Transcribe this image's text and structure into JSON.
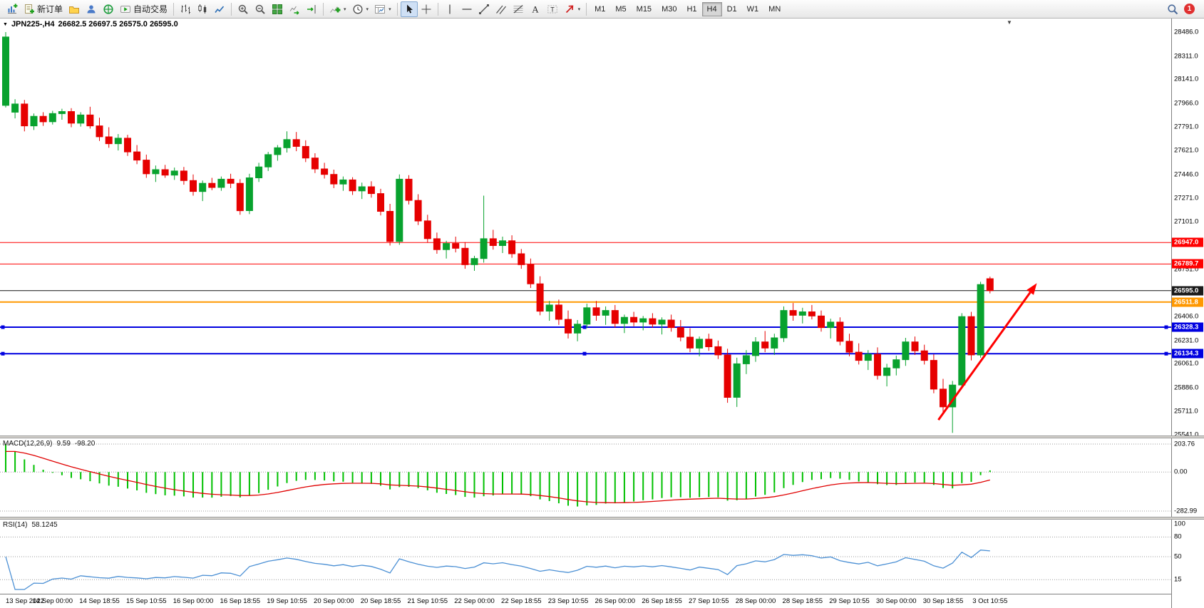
{
  "toolbar": {
    "new_order_label": "新订单",
    "auto_trading_label": "自动交易",
    "timeframes": [
      "M1",
      "M5",
      "M15",
      "M30",
      "H1",
      "H4",
      "D1",
      "W1",
      "MN"
    ],
    "active_timeframe": "H4",
    "notification_count": "1"
  },
  "chart": {
    "title_symbol": "JPN225-,H4",
    "title_ohlc": "26682.5 26697.5 26575.0 26595.0"
  },
  "macd_panel": {
    "label": "MACD(12,26,9)",
    "value_main": "9.59",
    "value_signal": "-98.20",
    "scale": [
      "203.76",
      "0.00",
      "-282.99"
    ],
    "histogram_color": "#00c000",
    "signal_color": "#e00000"
  },
  "rsi_panel": {
    "label": "RSI(14)",
    "value": "58.1245",
    "scale": [
      "100",
      "80",
      "50",
      "15"
    ],
    "levels": [
      80,
      50,
      15
    ],
    "line_color": "#4a8fd4"
  },
  "price_scale": {
    "ticks": [
      "28486.0",
      "28311.0",
      "28141.0",
      "27966.0",
      "27791.0",
      "27621.0",
      "27446.0",
      "27271.0",
      "27101.0",
      "26926.0",
      "26751.0",
      "26406.0",
      "26231.0",
      "26061.0",
      "25886.0",
      "25711.0",
      "25541.0"
    ]
  },
  "hlines": [
    {
      "price": 26947.0,
      "label": "26947.0",
      "color": "#ff0000",
      "width": 1,
      "badge": "#ff0000",
      "handles": false
    },
    {
      "price": 26789.7,
      "label": "26789.7",
      "color": "#ff0000",
      "width": 1,
      "badge": "#ff0000",
      "handles": false
    },
    {
      "price": 26595.0,
      "label": "26595.0",
      "color": "#151515",
      "width": 1,
      "badge": "#1a1a1a",
      "handles": false
    },
    {
      "price": 26511.8,
      "label": "26511.8",
      "color": "#ff9800",
      "width": 2,
      "badge": "#ff9800",
      "handles": false
    },
    {
      "price": 26328.3,
      "label": "26328.3",
      "color": "#0000e0",
      "width": 2,
      "badge": "#0000e0",
      "handles": true
    },
    {
      "price": 26134.3,
      "label": "26134.3",
      "color": "#0000e0",
      "width": 2,
      "badge": "#0000e0",
      "handles": true
    }
  ],
  "trend_arrow": {
    "from_index": 99.5,
    "from_price": 25650,
    "to_index": 110,
    "to_price": 26650,
    "color": "#ff0000"
  },
  "chart_data": {
    "type": "candlestick",
    "symbol": "JPN225-",
    "timeframe": "H4",
    "grid": false,
    "price_min": 25541.0,
    "price_max": 28486.0,
    "current_bar": {
      "open": 26682.5,
      "high": 26697.5,
      "low": 26575.0,
      "close": 26595.0
    },
    "colors": {
      "bull": "#08a22e",
      "bear": "#e60000"
    },
    "label_every_n_candles": 5,
    "time_labels": [
      "13 Sep 2022",
      "14 Sep 00:00",
      "14 Sep 18:55",
      "15 Sep 10:55",
      "16 Sep 00:00",
      "16 Sep 18:55",
      "19 Sep 10:55",
      "20 Sep 00:00",
      "20 Sep 18:55",
      "21 Sep 10:55",
      "22 Sep 00:00",
      "22 Sep 18:55",
      "23 Sep 10:55",
      "26 Sep 00:00",
      "26 Sep 18:55",
      "27 Sep 10:55",
      "28 Sep 00:00",
      "28 Sep 18:55",
      "29 Sep 10:55",
      "30 Sep 00:00",
      "30 Sep 18:55",
      "3 Oct 10:55"
    ],
    "indicators": [
      {
        "type": "MACD",
        "params": [
          12,
          26,
          9
        ]
      },
      {
        "type": "RSI",
        "params": [
          14
        ]
      }
    ],
    "candles": [
      [
        27950,
        28486,
        27935,
        28450
      ],
      [
        27900,
        27995,
        27855,
        27960
      ],
      [
        27960,
        27990,
        27760,
        27800
      ],
      [
        27800,
        27890,
        27770,
        27870
      ],
      [
        27870,
        27900,
        27800,
        27830
      ],
      [
        27830,
        27910,
        27810,
        27890
      ],
      [
        27890,
        27925,
        27845,
        27905
      ],
      [
        27905,
        27930,
        27790,
        27820
      ],
      [
        27820,
        27900,
        27795,
        27880
      ],
      [
        27880,
        27940,
        27780,
        27800
      ],
      [
        27800,
        27860,
        27690,
        27720
      ],
      [
        27720,
        27790,
        27640,
        27670
      ],
      [
        27670,
        27740,
        27620,
        27710
      ],
      [
        27710,
        27735,
        27580,
        27610
      ],
      [
        27610,
        27660,
        27520,
        27550
      ],
      [
        27550,
        27590,
        27420,
        27450
      ],
      [
        27450,
        27510,
        27390,
        27480
      ],
      [
        27480,
        27515,
        27420,
        27440
      ],
      [
        27440,
        27495,
        27405,
        27470
      ],
      [
        27470,
        27500,
        27370,
        27400
      ],
      [
        27400,
        27445,
        27290,
        27320
      ],
      [
        27320,
        27400,
        27250,
        27380
      ],
      [
        27380,
        27420,
        27330,
        27350
      ],
      [
        27350,
        27430,
        27325,
        27410
      ],
      [
        27410,
        27450,
        27345,
        27380
      ],
      [
        27380,
        27410,
        27150,
        27180
      ],
      [
        27180,
        27450,
        27155,
        27420
      ],
      [
        27420,
        27530,
        27390,
        27500
      ],
      [
        27500,
        27610,
        27470,
        27590
      ],
      [
        27590,
        27660,
        27545,
        27640
      ],
      [
        27640,
        27760,
        27605,
        27700
      ],
      [
        27700,
        27755,
        27615,
        27650
      ],
      [
        27650,
        27695,
        27535,
        27565
      ],
      [
        27565,
        27600,
        27455,
        27485
      ],
      [
        27485,
        27530,
        27415,
        27445
      ],
      [
        27445,
        27480,
        27345,
        27375
      ],
      [
        27375,
        27430,
        27325,
        27405
      ],
      [
        27405,
        27425,
        27295,
        27325
      ],
      [
        27325,
        27385,
        27265,
        27355
      ],
      [
        27355,
        27395,
        27275,
        27305
      ],
      [
        27305,
        27340,
        27145,
        27175
      ],
      [
        27175,
        27230,
        26925,
        26955
      ],
      [
        26955,
        27445,
        26930,
        27410
      ],
      [
        27410,
        27440,
        27225,
        27255
      ],
      [
        27255,
        27300,
        27075,
        27105
      ],
      [
        27105,
        27150,
        26945,
        26975
      ],
      [
        26975,
        27020,
        26865,
        26895
      ],
      [
        26895,
        26960,
        26830,
        26940
      ],
      [
        26940,
        26990,
        26875,
        26905
      ],
      [
        26905,
        26950,
        26755,
        26785
      ],
      [
        26785,
        26850,
        26740,
        26830
      ],
      [
        26830,
        27290,
        26800,
        26975
      ],
      [
        26975,
        27040,
        26895,
        26925
      ],
      [
        26925,
        26990,
        26870,
        26960
      ],
      [
        26960,
        27000,
        26835,
        26865
      ],
      [
        26865,
        26900,
        26755,
        26785
      ],
      [
        26785,
        26830,
        26615,
        26645
      ],
      [
        26645,
        26700,
        26415,
        26445
      ],
      [
        26445,
        26520,
        26375,
        26490
      ],
      [
        26490,
        26530,
        26345,
        26385
      ],
      [
        26385,
        26450,
        26245,
        26285
      ],
      [
        26285,
        26380,
        26225,
        26350
      ],
      [
        26350,
        26500,
        26320,
        26470
      ],
      [
        26470,
        26520,
        26375,
        26415
      ],
      [
        26415,
        26480,
        26345,
        26450
      ],
      [
        26450,
        26490,
        26325,
        26355
      ],
      [
        26355,
        26420,
        26285,
        26400
      ],
      [
        26400,
        26440,
        26335,
        26365
      ],
      [
        26365,
        26410,
        26305,
        26390
      ],
      [
        26390,
        26430,
        26325,
        26350
      ],
      [
        26350,
        26400,
        26275,
        26380
      ],
      [
        26380,
        26420,
        26295,
        26325
      ],
      [
        26325,
        26380,
        26225,
        26255
      ],
      [
        26255,
        26320,
        26145,
        26175
      ],
      [
        26175,
        26260,
        26115,
        26240
      ],
      [
        26240,
        26280,
        26155,
        26185
      ],
      [
        26185,
        26230,
        26095,
        26125
      ],
      [
        26125,
        26170,
        25775,
        25815
      ],
      [
        25815,
        26105,
        25745,
        26060
      ],
      [
        26060,
        26160,
        25985,
        26120
      ],
      [
        26120,
        26255,
        26075,
        26220
      ],
      [
        26220,
        26300,
        26145,
        26175
      ],
      [
        26175,
        26280,
        26125,
        26250
      ],
      [
        26250,
        26480,
        26220,
        26450
      ],
      [
        26450,
        26505,
        26375,
        26415
      ],
      [
        26415,
        26470,
        26355,
        26440
      ],
      [
        26440,
        26490,
        26385,
        26410
      ],
      [
        26410,
        26450,
        26295,
        26325
      ],
      [
        26325,
        26390,
        26245,
        26365
      ],
      [
        26365,
        26400,
        26195,
        26225
      ],
      [
        26225,
        26280,
        26115,
        26145
      ],
      [
        26145,
        26210,
        26055,
        26085
      ],
      [
        26085,
        26160,
        26015,
        26130
      ],
      [
        26130,
        26180,
        25945,
        25975
      ],
      [
        25975,
        26060,
        25895,
        26030
      ],
      [
        26030,
        26120,
        25975,
        26090
      ],
      [
        26090,
        26250,
        26045,
        26220
      ],
      [
        26220,
        26260,
        26125,
        26155
      ],
      [
        26155,
        26200,
        26055,
        26085
      ],
      [
        26085,
        26130,
        25845,
        25875
      ],
      [
        25875,
        25950,
        25695,
        25745
      ],
      [
        25745,
        25935,
        25555,
        25905
      ],
      [
        25905,
        26430,
        25885,
        26405
      ],
      [
        26405,
        26440,
        26085,
        26125
      ],
      [
        26125,
        26660,
        26105,
        26640
      ],
      [
        26682.5,
        26697.5,
        26575.0,
        26595.0
      ]
    ]
  }
}
